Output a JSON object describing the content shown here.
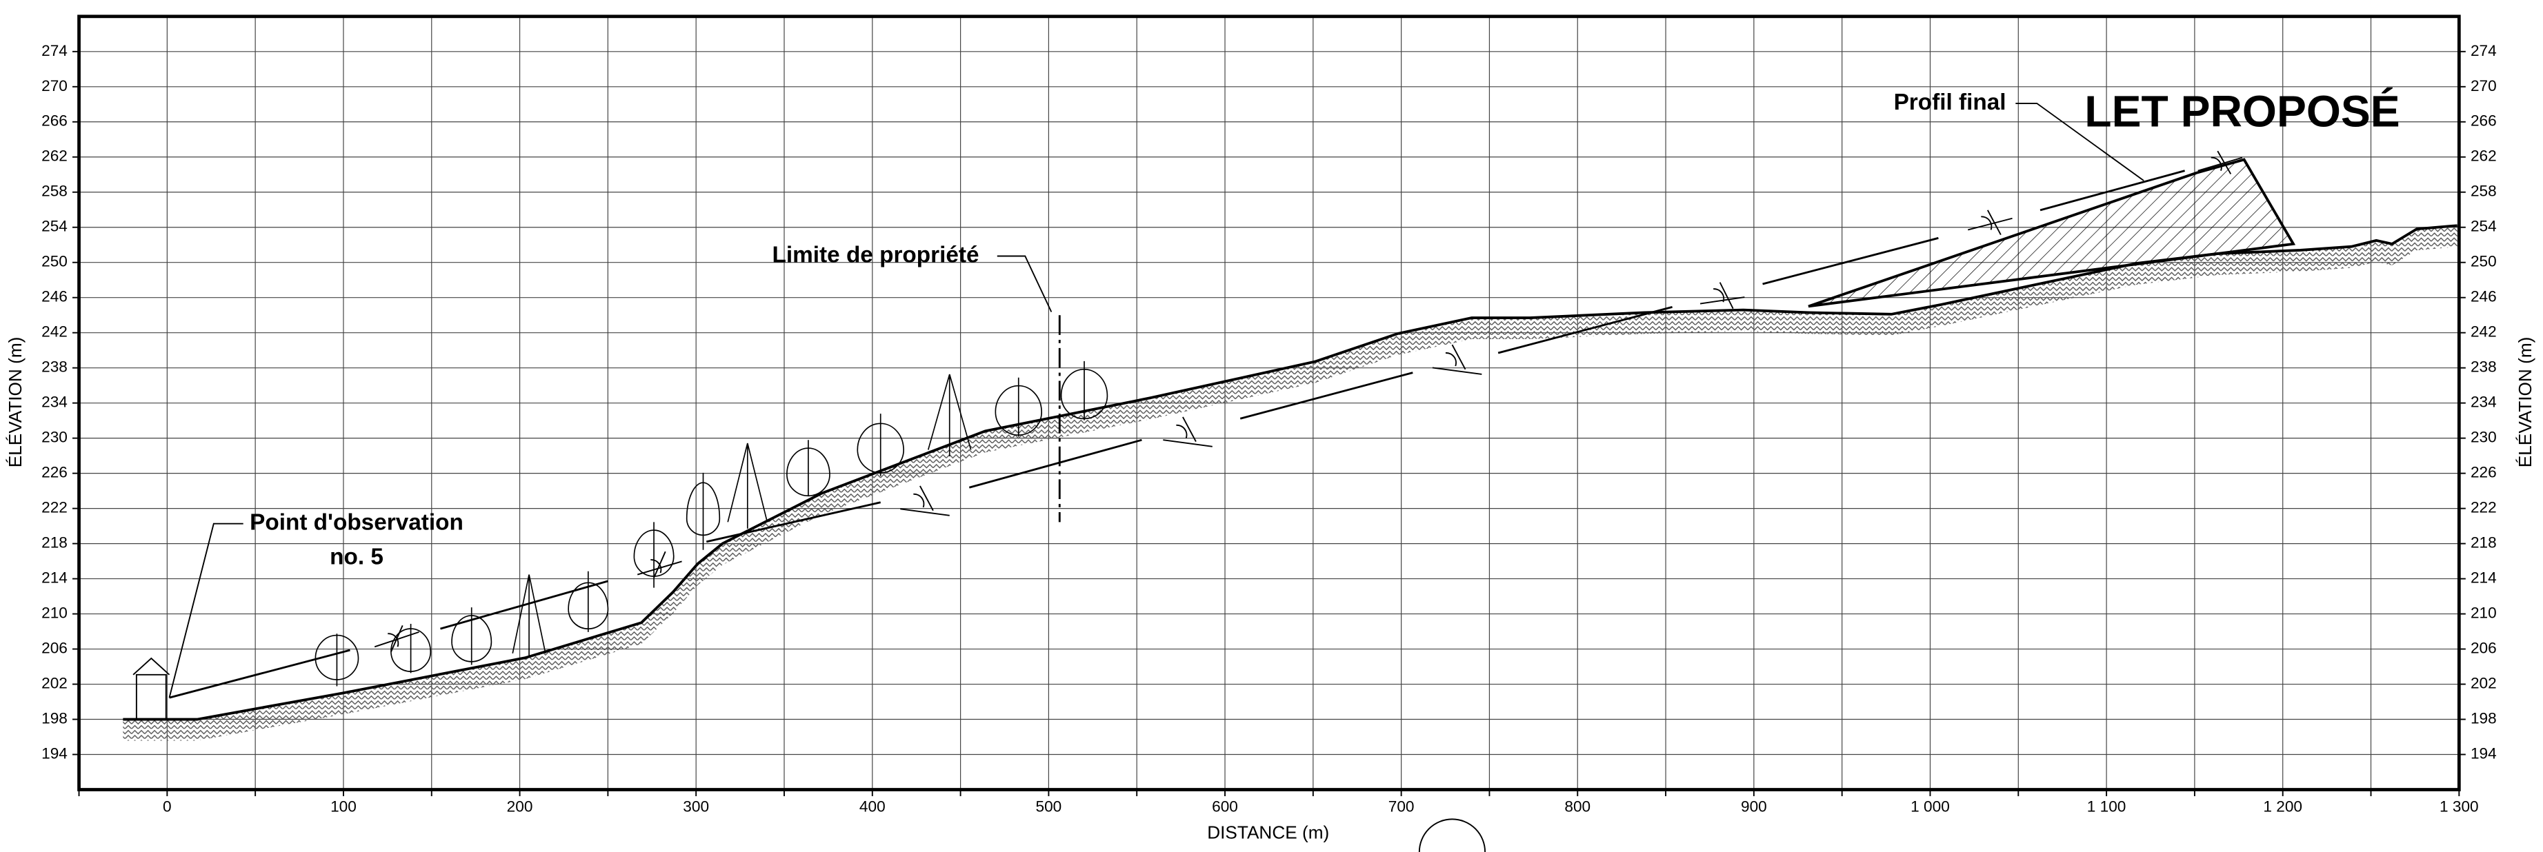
{
  "chart_data": {
    "type": "line",
    "xlabel": "DISTANCE (m)",
    "ylabel": "ÉLÉVATION (m)",
    "xlim": [
      -50,
      1300
    ],
    "ylim": [
      190,
      278
    ],
    "xticks": [
      0,
      100,
      200,
      300,
      400,
      500,
      600,
      700,
      800,
      900,
      {
        "value": 1000,
        "label": "1 000"
      },
      {
        "value": 1100,
        "label": "1 100"
      },
      {
        "value": 1200,
        "label": "1 200"
      },
      {
        "value": 1300,
        "label": "1 300"
      }
    ],
    "xgrid": [
      -50,
      50,
      150,
      250,
      350,
      450,
      550,
      650,
      750,
      850,
      950,
      1050,
      1150,
      1250
    ],
    "yticks": [
      194,
      198,
      202,
      206,
      210,
      214,
      218,
      222,
      226,
      230,
      234,
      238,
      242,
      246,
      250,
      254,
      258,
      262,
      266,
      270,
      274
    ],
    "grid": true,
    "annotations": {
      "observation": [
        "Point d'observation",
        "no. 5"
      ],
      "property": "Limite de propriété",
      "profile": "Profil final",
      "project": "LET PROPOSÉ"
    },
    "series": [
      {
        "color": "#000000",
        "x": [
          -25,
          17,
          100,
          203,
          269,
          287,
          301,
          315,
          371,
          464,
          558,
          651,
          698,
          740,
          773,
          838,
          894,
          931,
          978,
          1006,
          1117,
          1163,
          1210,
          1239,
          1253,
          1262,
          1276,
          1299
        ],
        "values": [
          198,
          198,
          201,
          205,
          209,
          212.5,
          215.7,
          218,
          223.7,
          230.8,
          234.6,
          238.7,
          241.9,
          243.7,
          243.7,
          244.3,
          244.6,
          244.3,
          244.1,
          245.2,
          249.9,
          251,
          251.4,
          251.8,
          252.5,
          252.1,
          253.8,
          254.2
        ]
      },
      {
        "color": "#000000",
        "x": [
          931,
          1151,
          1178,
          1206
        ],
        "values": [
          245,
          260.2,
          261.7,
          252.1
        ]
      }
    ]
  }
}
